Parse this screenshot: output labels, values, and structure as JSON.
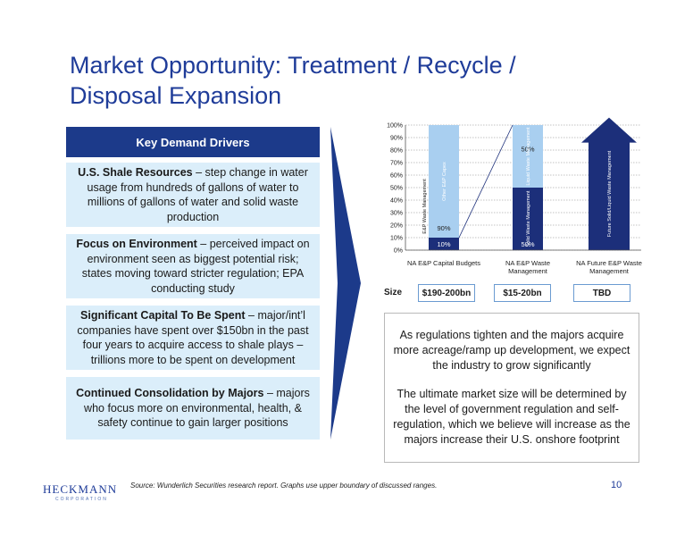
{
  "title": {
    "line1": "Market Opportunity:  Treatment / Recycle /",
    "line2": "Disposal Expansion"
  },
  "drivers": {
    "header": "Key Demand Drivers",
    "items": [
      {
        "bold": "U.S. Shale Resources",
        "text": " – step change in water usage from hundreds of gallons of water to millions of gallons of water and solid waste production"
      },
      {
        "bold": "Focus on Environment",
        "text": " – perceived impact on environment seen as biggest potential risk; states moving toward stricter regulation; EPA conducting study"
      },
      {
        "bold": "Significant Capital To Be Spent",
        "text": " – major/int’l companies have spent over $150bn in the past four years to acquire access to shale plays – trillions more to be spent on development"
      },
      {
        "bold": "Continued Consolidation by Majors",
        "text": " – majors who focus more on environmental, health, & safety continue to gain larger positions"
      }
    ]
  },
  "chart_data": {
    "type": "bar",
    "stacked": true,
    "categories": [
      "NA E&P Capital Budgets",
      "NA E&P Waste Management",
      "NA Future E&P Waste Management"
    ],
    "yticks": [
      "0%",
      "10%",
      "20%",
      "30%",
      "40%",
      "50%",
      "60%",
      "70%",
      "80%",
      "90%",
      "100%"
    ],
    "ylim": [
      0,
      100
    ],
    "grid": true,
    "bar1": {
      "segments": [
        {
          "name": "E&P Waste Management",
          "value": 10,
          "label": "10%",
          "color": "#1c2f7a"
        },
        {
          "name": "Other E&P Capex",
          "value": 90,
          "label": "90%",
          "color": "#a9cff0"
        }
      ]
    },
    "bar2": {
      "segments": [
        {
          "name": "Solid Waste Management",
          "value": 50,
          "label": "50%",
          "color": "#1c2f7a"
        },
        {
          "name": "Liquid Waste Management",
          "value": 50,
          "label": "50%",
          "color": "#a9cff0"
        }
      ]
    },
    "bar3": {
      "name": "Future Solid/Liquid Waste Management",
      "type": "arrow",
      "color": "#1c2f7a"
    }
  },
  "sizes": {
    "label": "Size",
    "values": [
      "$190-200bn",
      "$15-20bn",
      "TBD"
    ]
  },
  "callout": {
    "p1": "As regulations tighten and the majors acquire more acreage/ramp up development, we expect the industry to grow significantly",
    "p2": "The ultimate market size will be determined by the level of government regulation and self-regulation, which we believe will increase as the majors increase their U.S. onshore footprint"
  },
  "footer": {
    "source": "Source: Wunderlich Securities research report.  Graphs use upper boundary of discussed ranges.",
    "page": "10",
    "logo_name": "HECKMANN",
    "logo_sub": "CORPORATION"
  },
  "colors": {
    "brand": "#1f3c99",
    "dark_bar": "#1c2f7a",
    "light_bar": "#a9cff0",
    "box": "#dbeefa"
  }
}
